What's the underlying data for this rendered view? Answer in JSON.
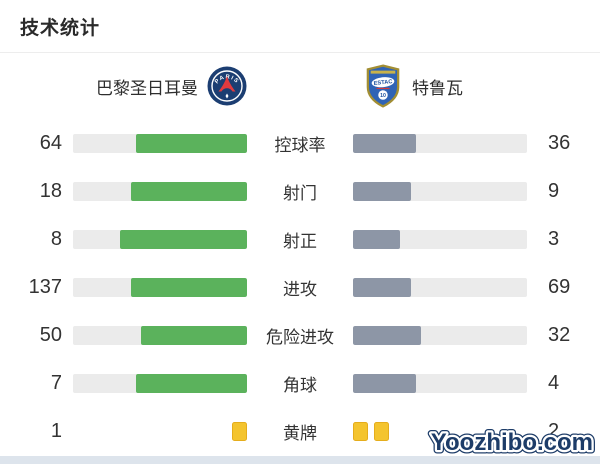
{
  "title": "技术统计",
  "teams": {
    "home": {
      "name": "巴黎圣日耳曼",
      "crest_primary": "PARIS"
    },
    "away": {
      "name": "特鲁瓦",
      "crest_primary": "ESTAC",
      "crest_number": "10"
    }
  },
  "stats": [
    {
      "label": "控球率",
      "home": 64,
      "away": 36
    },
    {
      "label": "射门",
      "home": 18,
      "away": 9
    },
    {
      "label": "射正",
      "home": 8,
      "away": 3
    },
    {
      "label": "进攻",
      "home": 137,
      "away": 69
    },
    {
      "label": "危险进攻",
      "home": 50,
      "away": 32
    },
    {
      "label": "角球",
      "home": 7,
      "away": 4
    },
    {
      "label": "黄牌",
      "home": 1,
      "away": 2,
      "display": "cards"
    }
  ],
  "colors": {
    "home_fill": "#5bb25c",
    "away_fill": "#8d96a6",
    "track": "#ebebeb",
    "card": "#f4c42e",
    "card_border": "#e5ad1c",
    "watermark_text": "#1d3c68",
    "watermark_outline": "#ffffff"
  },
  "watermark": "Yoozhibo.com"
}
